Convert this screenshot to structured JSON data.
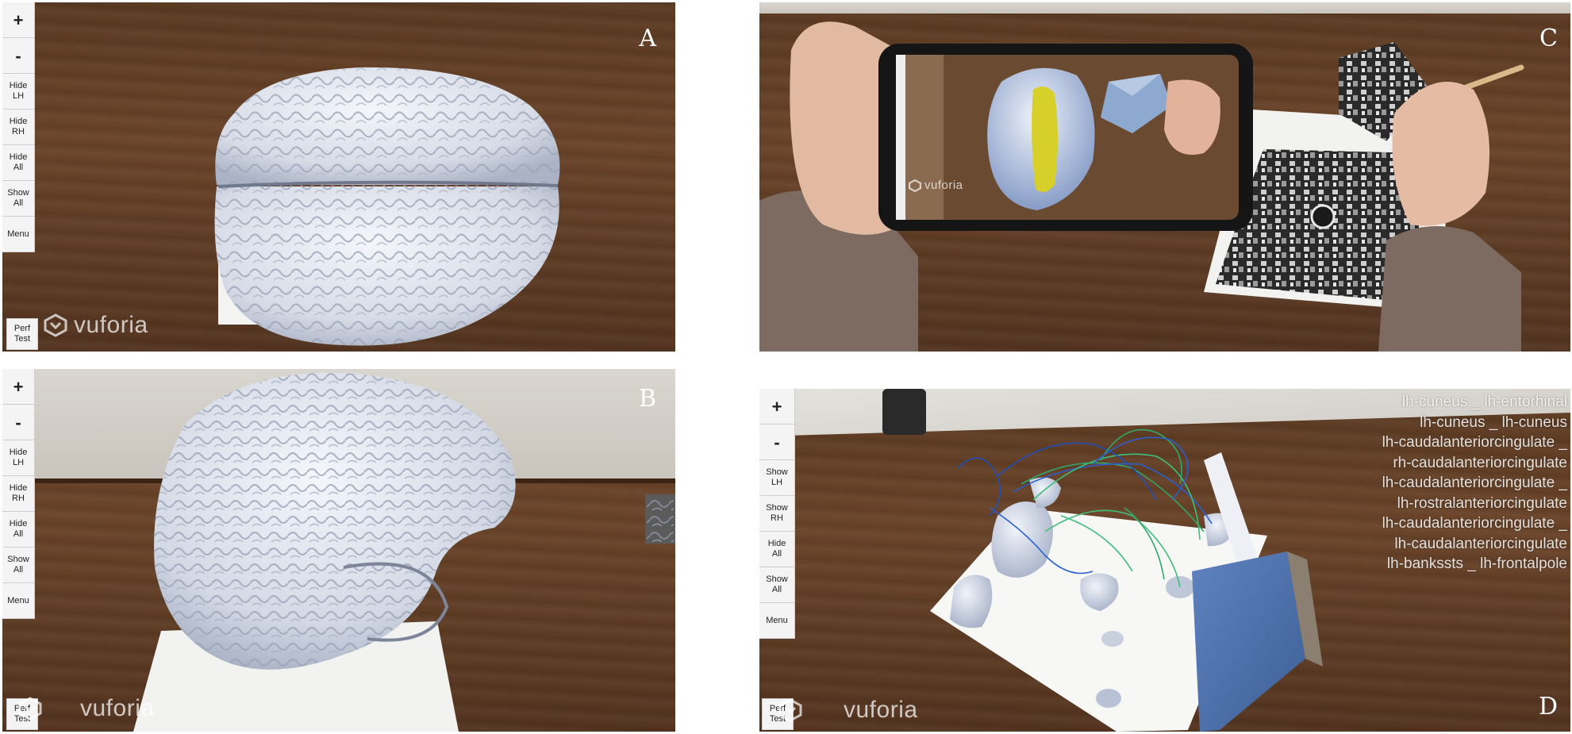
{
  "panels": {
    "a": {
      "letter": "A",
      "toolbar": [
        "+",
        "-",
        "Hide\nLH",
        "Hide\nRH",
        "Hide\nAll",
        "Show\nAll",
        "Menu"
      ],
      "perf_button": "Perf\nTest",
      "logo": "vuforia"
    },
    "b": {
      "letter": "B",
      "toolbar": [
        "+",
        "-",
        "Hide\nLH",
        "Hide\nRH",
        "Hide\nAll",
        "Show\nAll",
        "Menu"
      ],
      "perf_button": "Perf\nTest",
      "logo": "vuforia"
    },
    "c": {
      "letter": "C",
      "phone_logo": "vuforia"
    },
    "d": {
      "letter": "D",
      "toolbar": [
        "+",
        "-",
        "Show\nLH",
        "Show\nRH",
        "Hide\nAll",
        "Show\nAll",
        "Menu"
      ],
      "perf_button": "Perf\nTest",
      "logo": "vuforia",
      "region_labels": [
        "lh-cuneus _ lh-entorhinal",
        "lh-cuneus _ lh-cuneus",
        "lh-caudalanteriorcingulate _",
        "rh-caudalanteriorcingulate",
        "lh-caudalanteriorcingulate _",
        "lh-rostralanteriorcingulate",
        "lh-caudalanteriorcingulate _",
        "lh-caudalanteriorcingulate",
        "lh-bankssts _ lh-frontalpole"
      ]
    }
  },
  "colors": {
    "wood": "#5f3d25",
    "brain": "#dfe4ee",
    "toolbar_bg": "#f4f4f4",
    "tract_green": "#2fa86a",
    "tract_blue": "#2a5fd0",
    "highlight_yellow": "#d8d02a"
  }
}
